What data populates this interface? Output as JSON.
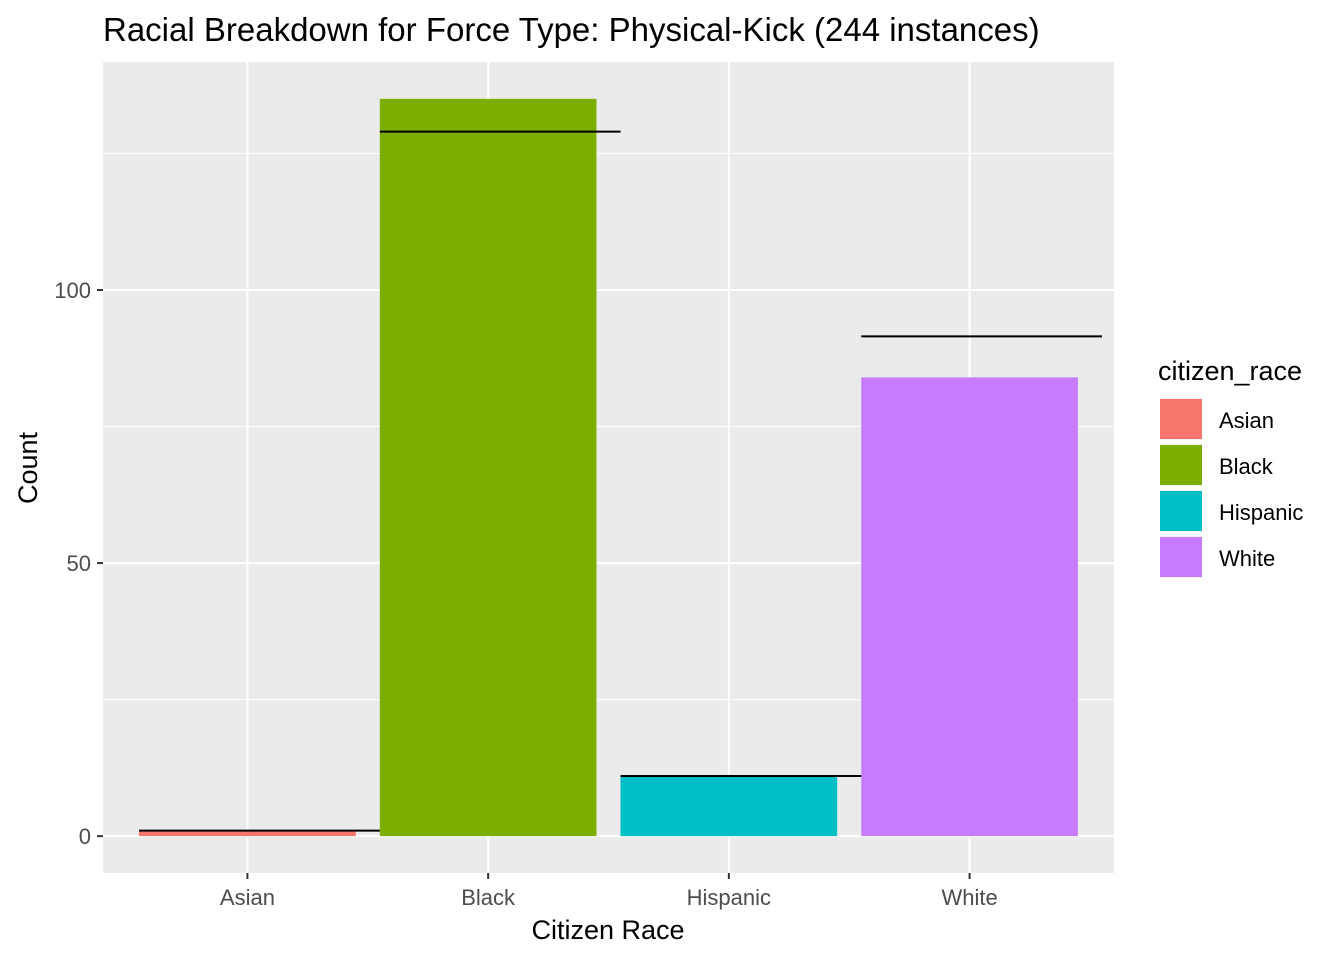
{
  "chart_data": {
    "type": "bar",
    "title": "Racial Breakdown for Force Type: Physical-Kick (244 instances)",
    "xlabel": "Citizen Race",
    "ylabel": "Count",
    "categories": [
      "Asian",
      "Black",
      "Hispanic",
      "White"
    ],
    "values": [
      1,
      135,
      11,
      84
    ],
    "reference_values": [
      1,
      129,
      11,
      91.5
    ],
    "colors": [
      "#F8766D",
      "#7CAE00",
      "#00BFC4",
      "#C77CFF"
    ],
    "ylim": [
      -6.75,
      141.75
    ],
    "y_ticks": [
      0,
      50,
      100
    ],
    "y_tick_labels": [
      "0",
      "50",
      "100"
    ],
    "grid": true,
    "legend": {
      "title": "citizen_race",
      "position": "right",
      "items": [
        "Asian",
        "Black",
        "Hispanic",
        "White"
      ]
    }
  }
}
